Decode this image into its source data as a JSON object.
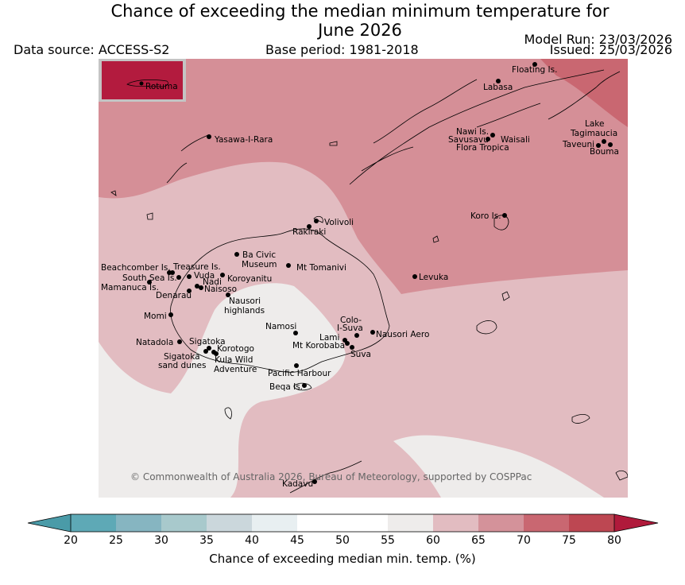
{
  "header": {
    "title_line1": "Chance of exceeding the median minimum temperature for",
    "title_line2": "June 2026",
    "data_source": "Data source: ACCESS-S2",
    "base_period": "Base period: 1981-2018",
    "model_run": "Model Run: 23/03/2026",
    "issued": "Issued: 25/03/2026"
  },
  "map": {
    "copyright": "© Commonwealth of Australia 2026, Bureau of Meteorology, supported by COSPPac",
    "inset_label": "Rotuma",
    "places": [
      {
        "name": "Floating Is."
      },
      {
        "name": "Labasa"
      },
      {
        "name": "Yasawa-I-Rara"
      },
      {
        "name": "Nawi Is."
      },
      {
        "name": "Savusavu"
      },
      {
        "name": "Waisali"
      },
      {
        "name": "Flora Tropica"
      },
      {
        "name": "Lake"
      },
      {
        "name": "Tagimaucia"
      },
      {
        "name": "Taveuni"
      },
      {
        "name": "Bouma"
      },
      {
        "name": "Koro Is."
      },
      {
        "name": "Volivoli"
      },
      {
        "name": "Rakiraki"
      },
      {
        "name": "Ba Civic"
      },
      {
        "name": "Museum"
      },
      {
        "name": "Mt Tomanivi"
      },
      {
        "name": "Levuka"
      },
      {
        "name": "Beachcomber Is."
      },
      {
        "name": "Treasure Is."
      },
      {
        "name": "South Sea Is."
      },
      {
        "name": "Vuda"
      },
      {
        "name": "Koroyanitu"
      },
      {
        "name": "Nadi"
      },
      {
        "name": "Mamanuca Is."
      },
      {
        "name": "Naisoso"
      },
      {
        "name": "Denarau"
      },
      {
        "name": "Nausori"
      },
      {
        "name": "highlands"
      },
      {
        "name": "Momi"
      },
      {
        "name": "Namosi"
      },
      {
        "name": "Colo-"
      },
      {
        "name": "I-Suva"
      },
      {
        "name": "Nausori Aero"
      },
      {
        "name": "Lami"
      },
      {
        "name": "Mt Korobaba"
      },
      {
        "name": "Suva"
      },
      {
        "name": "Natadola"
      },
      {
        "name": "Sigatoka"
      },
      {
        "name": "Korotogo"
      },
      {
        "name": "Sigatoka"
      },
      {
        "name": "sand dunes"
      },
      {
        "name": "Kula Wild"
      },
      {
        "name": "Adventure"
      },
      {
        "name": "Pacific Harbour"
      },
      {
        "name": "Beqa Is."
      },
      {
        "name": "Kadavu"
      }
    ]
  },
  "colorbar": {
    "title": "Chance of exceeding median min. temp. (%)",
    "ticks": [
      "20",
      "25",
      "30",
      "35",
      "40",
      "45",
      "50",
      "55",
      "60",
      "65",
      "70",
      "75",
      "80"
    ],
    "colors": [
      "#5ea9b6",
      "#86b5c1",
      "#a8c9cc",
      "#cbd7dc",
      "#e8eff1",
      "#ffffff",
      "#ffffff",
      "#eeeceb",
      "#e2bcc1",
      "#d4929a",
      "#c96771",
      "#bd4752"
    ],
    "under_color": "#4a9ba8",
    "over_color": "#b01a3b"
  },
  "legend_colors": {
    "band_55_60": "#eeeceb",
    "band_60_65": "#e2bcc1",
    "band_65_70": "#d58f97",
    "band_70_75": "#c96771",
    "inset_80": "#b31b3e"
  }
}
